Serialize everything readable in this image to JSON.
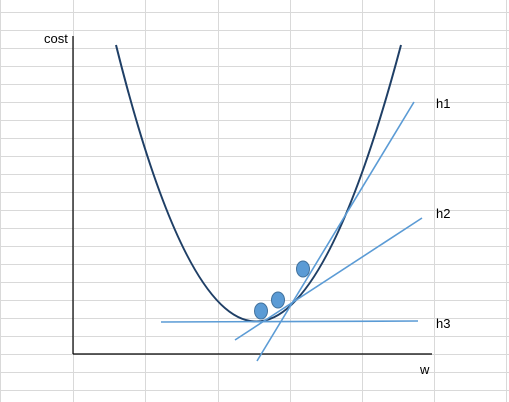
{
  "diagram": {
    "axis_labels": {
      "y": "cost",
      "x": "w"
    },
    "line_labels": [
      "h1",
      "h2",
      "h3"
    ],
    "colors": {
      "grid": "#d9d9d9",
      "axis": "#000000",
      "curve": "#1f3f66",
      "tangents": "#5b9bd5",
      "points": "#5b9bd5",
      "point_stroke": "#41719c"
    }
  }
}
